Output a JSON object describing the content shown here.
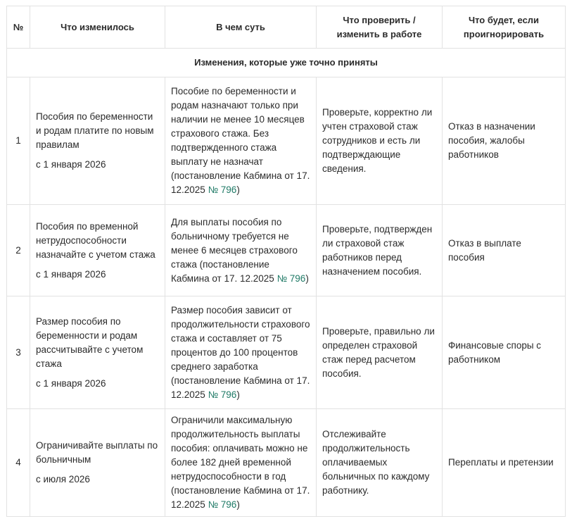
{
  "header": [
    "№",
    "Что изменилось",
    "В чем суть",
    "Что проверить / изменить в работе",
    "Что будет, если проигнорировать"
  ],
  "section_title": "Изменения, которые уже точно приняты",
  "link_color": "#1f7a66",
  "rows": [
    {
      "num": "1",
      "change": "Пособия по беременности и родам платите по новым правилам",
      "date": "с 1 января 2026",
      "essence": "Пособие по беременности и родам назначают только при наличии не менее 10 месяцев страхового стажа. Без подтвержденного стажа выплату не назначат (постановление Кабмина от 17. 12.2025 ",
      "link": "№ 796",
      "essence_end": ")",
      "check": "Проверьте, корректно ли учтен страховой стаж сотрудников и есть ли подтверждающие сведения.",
      "risk": "Отказ в назначении пособия, жалобы работников"
    },
    {
      "num": "2",
      "change": "Пособия по временной нетрудоспособности назначайте с учетом стажа",
      "date": "с 1 января 2026",
      "essence": "Для выплаты пособия по больничному требуется не менее 6 месяцев страхового стажа (постановление Кабмина от 17. 12.2025 ",
      "link": "№ 796",
      "essence_end": ")",
      "check": "Проверьте, подтвержден ли страховой стаж работников перед назначением пособия.",
      "risk": "Отказ в выплате пособия"
    },
    {
      "num": "3",
      "change": "Размер пособия по беременности и родам рассчитывайте с учетом стажа",
      "date": "с 1 января 2026",
      "essence": "Размер пособия зависит от продолжительности страхового стажа и составляет от 75 процентов до 100 процентов среднего заработка (постановление Кабмина от 17. 12.2025 ",
      "link": "№ 796",
      "essence_end": ")",
      "check": "Проверьте, правильно ли определен страховой стаж перед расчетом пособия.",
      "risk": "Финансовые споры с работником"
    },
    {
      "num": "4",
      "change": "Ограничивайте выплаты по больничным",
      "date": "с июля 2026",
      "essence": "Ограничили максимальную продолжительность выплаты пособия: оплачивать можно не более 182 дней временной нетрудоспособности в год (постановление Кабмина от 17. 12.2025 ",
      "link": "№ 796",
      "essence_end": ")",
      "check": "Отслеживайте продолжительность оплачиваемых больничных по каждому работнику.",
      "risk": "Переплаты и претензии"
    }
  ]
}
